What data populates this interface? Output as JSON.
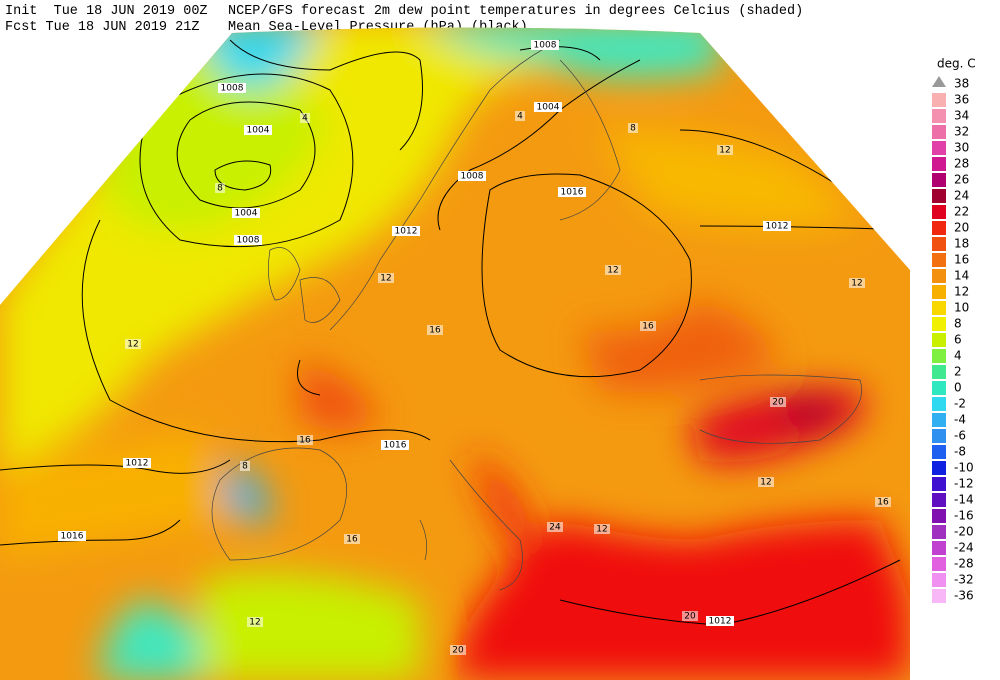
{
  "header": {
    "init": "Init  Tue 18 JUN 2019 00Z",
    "fcst": "Fcst Tue 18 JUN 2019 21Z",
    "title": "NCEP/GFS forecast 2m dew point temperatures in degrees Celcius (shaded)",
    "subtitle": "Mean Sea-Level Pressure (hPa) (black)."
  },
  "legend": {
    "title": "deg. C",
    "levels": [
      {
        "label": "38",
        "color": "#999999"
      },
      {
        "label": "36",
        "color": "#f8b0b0"
      },
      {
        "label": "34",
        "color": "#f490b0"
      },
      {
        "label": "32",
        "color": "#ee70a8"
      },
      {
        "label": "30",
        "color": "#e040a8"
      },
      {
        "label": "28",
        "color": "#d01890"
      },
      {
        "label": "26",
        "color": "#b00070"
      },
      {
        "label": "24",
        "color": "#a00030"
      },
      {
        "label": "22",
        "color": "#e00020"
      },
      {
        "label": "20",
        "color": "#f02810"
      },
      {
        "label": "18",
        "color": "#f05010"
      },
      {
        "label": "16",
        "color": "#f27010"
      },
      {
        "label": "14",
        "color": "#f49010"
      },
      {
        "label": "12",
        "color": "#f8b000"
      },
      {
        "label": "10",
        "color": "#f8d800"
      },
      {
        "label": "8",
        "color": "#f0f000"
      },
      {
        "label": "6",
        "color": "#c8f000"
      },
      {
        "label": "4",
        "color": "#80f040"
      },
      {
        "label": "2",
        "color": "#40e890"
      },
      {
        "label": "0",
        "color": "#30e8c0"
      },
      {
        "label": "-2",
        "color": "#30d8f0"
      },
      {
        "label": "-4",
        "color": "#30b0f0"
      },
      {
        "label": "-6",
        "color": "#3090f0"
      },
      {
        "label": "-8",
        "color": "#2060f0"
      },
      {
        "label": "-10",
        "color": "#1020e0"
      },
      {
        "label": "-12",
        "color": "#4010d0"
      },
      {
        "label": "-14",
        "color": "#6010c0"
      },
      {
        "label": "-16",
        "color": "#8010b0"
      },
      {
        "label": "-20",
        "color": "#a030c0"
      },
      {
        "label": "-24",
        "color": "#c040d0"
      },
      {
        "label": "-28",
        "color": "#e060e0"
      },
      {
        "label": "-32",
        "color": "#f090f0"
      },
      {
        "label": "-36",
        "color": "#f8b8f8"
      }
    ]
  },
  "map": {
    "pressure_labels": [
      "1008",
      "1004",
      "1004",
      "1008",
      "1008",
      "1004",
      "1008",
      "1012",
      "1016",
      "1012",
      "1016",
      "1012",
      "1016",
      "1012"
    ],
    "dewpoint_labels": [
      "8",
      "4",
      "12",
      "16",
      "12",
      "16",
      "12",
      "12",
      "20",
      "16",
      "8",
      "16",
      "12",
      "20",
      "24",
      "12",
      "20",
      "16",
      "12",
      "4",
      "8",
      "12"
    ]
  }
}
